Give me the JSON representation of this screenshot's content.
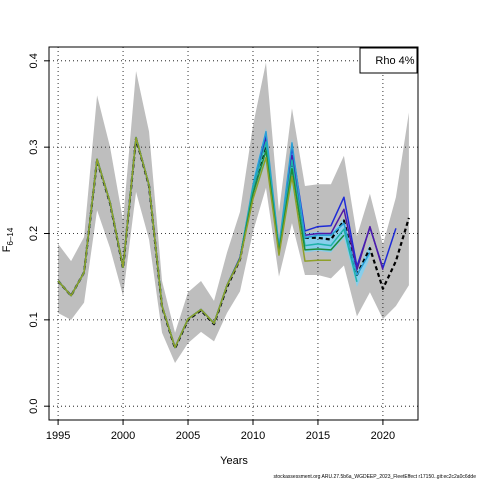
{
  "chart_data": {
    "type": "line",
    "xlabel": "Years",
    "ylabel_main": "F",
    "ylabel_sub": "6–14",
    "legend": {
      "text": "Rho 4%",
      "position": "top-right"
    },
    "source": "stockassessment.org ARU.27.5b6a_WGDEEP_2023_FleetEffect r17150..git:ec2c2a0c6dde",
    "xlim": [
      1994.3,
      2022.7
    ],
    "ylim": [
      -0.016,
      0.416
    ],
    "xticks": [
      1995,
      2000,
      2005,
      2010,
      2015,
      2020
    ],
    "xtick_labels": [
      "1995",
      "2000",
      "2005",
      "2010",
      "2015",
      "2020"
    ],
    "yticks": [
      0.0,
      0.1,
      0.2,
      0.3,
      0.4
    ],
    "ytick_labels": [
      "0.0",
      "0.1",
      "0.2",
      "0.3",
      "0.4"
    ],
    "grid": true,
    "bands": [
      {
        "name": "confidence-interval",
        "color": "#bebebe",
        "x": [
          1995,
          1996,
          1997,
          1998,
          1999,
          2000,
          2001,
          2002,
          2003,
          2004,
          2005,
          2006,
          2007,
          2008,
          2009,
          2010,
          2011,
          2012,
          2013,
          2014,
          2015,
          2016,
          2017,
          2018,
          2019,
          2020,
          2021,
          2022
        ],
        "lower": [
          0.108,
          0.1,
          0.12,
          0.227,
          0.183,
          0.128,
          0.248,
          0.193,
          0.085,
          0.05,
          0.073,
          0.086,
          0.075,
          0.108,
          0.133,
          0.202,
          0.253,
          0.15,
          0.212,
          0.152,
          0.152,
          0.148,
          0.163,
          0.104,
          0.132,
          0.101,
          0.116,
          0.14
        ],
        "upper": [
          0.188,
          0.168,
          0.196,
          0.36,
          0.3,
          0.215,
          0.388,
          0.318,
          0.145,
          0.085,
          0.132,
          0.145,
          0.122,
          0.178,
          0.225,
          0.325,
          0.398,
          0.225,
          0.345,
          0.255,
          0.257,
          0.257,
          0.29,
          0.197,
          0.246,
          0.187,
          0.242,
          0.34
        ]
      },
      {
        "name": "peel-band",
        "color": "#87ceeb",
        "x": [
          2010,
          2011,
          2012,
          2013,
          2014,
          2015,
          2016,
          2017,
          2018,
          2019
        ],
        "lower": [
          0.24,
          0.282,
          0.176,
          0.254,
          0.178,
          0.18,
          0.178,
          0.195,
          0.138,
          0.172
        ],
        "upper": [
          0.262,
          0.322,
          0.188,
          0.31,
          0.2,
          0.202,
          0.2,
          0.218,
          0.155,
          0.188
        ]
      }
    ],
    "series": [
      {
        "color": "#000000",
        "dashed": true,
        "width": 2.2,
        "x": [
          1995,
          1996,
          1997,
          1998,
          1999,
          2000,
          2001,
          2002,
          2003,
          2004,
          2005,
          2006,
          2007,
          2008,
          2009,
          2010,
          2011,
          2012,
          2013,
          2014,
          2015,
          2016,
          2017,
          2018,
          2019,
          2020,
          2021,
          2022
        ],
        "y": [
          0.145,
          0.128,
          0.155,
          0.285,
          0.235,
          0.16,
          0.31,
          0.255,
          0.115,
          0.067,
          0.1,
          0.111,
          0.095,
          0.138,
          0.17,
          0.248,
          0.305,
          0.18,
          0.28,
          0.195,
          0.195,
          0.193,
          0.215,
          0.152,
          0.183,
          0.136,
          0.168,
          0.218
        ]
      },
      {
        "color": "#1e2bd8",
        "dashed": false,
        "width": 1.5,
        "x": [
          1995,
          1996,
          1997,
          1998,
          1999,
          2000,
          2001,
          2002,
          2003,
          2004,
          2005,
          2006,
          2007,
          2008,
          2009,
          2010,
          2011,
          2012,
          2013,
          2014,
          2015,
          2016,
          2017,
          2018,
          2019,
          2020,
          2021
        ],
        "y": [
          0.145,
          0.128,
          0.155,
          0.286,
          0.236,
          0.161,
          0.311,
          0.256,
          0.116,
          0.068,
          0.101,
          0.112,
          0.096,
          0.14,
          0.172,
          0.252,
          0.312,
          0.182,
          0.3,
          0.203,
          0.208,
          0.209,
          0.242,
          0.162,
          0.207,
          0.16,
          0.206
        ]
      },
      {
        "color": "#4f1aa8",
        "dashed": false,
        "width": 1.5,
        "x": [
          1995,
          1996,
          1997,
          1998,
          1999,
          2000,
          2001,
          2002,
          2003,
          2004,
          2005,
          2006,
          2007,
          2008,
          2009,
          2010,
          2011,
          2012,
          2013,
          2014,
          2015,
          2016,
          2017,
          2018,
          2019,
          2020
        ],
        "y": [
          0.145,
          0.128,
          0.155,
          0.286,
          0.236,
          0.161,
          0.311,
          0.256,
          0.116,
          0.068,
          0.101,
          0.112,
          0.096,
          0.14,
          0.172,
          0.25,
          0.308,
          0.181,
          0.29,
          0.198,
          0.2,
          0.2,
          0.228,
          0.158,
          0.208,
          0.158
        ]
      },
      {
        "color": "#2a9fd6",
        "dashed": false,
        "width": 1.5,
        "x": [
          1995,
          1996,
          1997,
          1998,
          1999,
          2000,
          2001,
          2002,
          2003,
          2004,
          2005,
          2006,
          2007,
          2008,
          2009,
          2010,
          2011,
          2012,
          2013,
          2014,
          2015,
          2016,
          2017,
          2018,
          2019
        ],
        "y": [
          0.145,
          0.128,
          0.155,
          0.286,
          0.236,
          0.161,
          0.311,
          0.256,
          0.116,
          0.068,
          0.101,
          0.112,
          0.096,
          0.14,
          0.171,
          0.256,
          0.318,
          0.185,
          0.305,
          0.195,
          0.198,
          0.198,
          0.212,
          0.152,
          0.178
        ]
      },
      {
        "color": "#20b2aa",
        "dashed": false,
        "width": 1.5,
        "x": [
          1995,
          1996,
          1997,
          1998,
          1999,
          2000,
          2001,
          2002,
          2003,
          2004,
          2005,
          2006,
          2007,
          2008,
          2009,
          2010,
          2011,
          2012,
          2013,
          2014,
          2015,
          2016,
          2017,
          2018
        ],
        "y": [
          0.145,
          0.128,
          0.155,
          0.286,
          0.236,
          0.161,
          0.311,
          0.256,
          0.116,
          0.068,
          0.101,
          0.112,
          0.096,
          0.14,
          0.171,
          0.252,
          0.306,
          0.181,
          0.285,
          0.186,
          0.188,
          0.186,
          0.205,
          0.144
        ]
      },
      {
        "color": "#1e8c3a",
        "dashed": false,
        "width": 1.5,
        "x": [
          1995,
          1996,
          1997,
          1998,
          1999,
          2000,
          2001,
          2002,
          2003,
          2004,
          2005,
          2006,
          2007,
          2008,
          2009,
          2010,
          2011,
          2012,
          2013,
          2014,
          2015,
          2016,
          2017
        ],
        "y": [
          0.145,
          0.128,
          0.155,
          0.286,
          0.236,
          0.161,
          0.311,
          0.256,
          0.116,
          0.068,
          0.101,
          0.112,
          0.096,
          0.14,
          0.171,
          0.246,
          0.296,
          0.179,
          0.275,
          0.181,
          0.182,
          0.181,
          0.198
        ]
      },
      {
        "color": "#8fa02a",
        "dashed": false,
        "width": 1.5,
        "x": [
          1995,
          1996,
          1997,
          1998,
          1999,
          2000,
          2001,
          2002,
          2003,
          2004,
          2005,
          2006,
          2007,
          2008,
          2009,
          2010,
          2011,
          2012,
          2013,
          2014,
          2015,
          2016
        ],
        "y": [
          0.145,
          0.128,
          0.155,
          0.286,
          0.236,
          0.161,
          0.311,
          0.256,
          0.116,
          0.068,
          0.101,
          0.112,
          0.096,
          0.14,
          0.17,
          0.24,
          0.288,
          0.175,
          0.266,
          0.168,
          0.169,
          0.169
        ]
      }
    ]
  }
}
